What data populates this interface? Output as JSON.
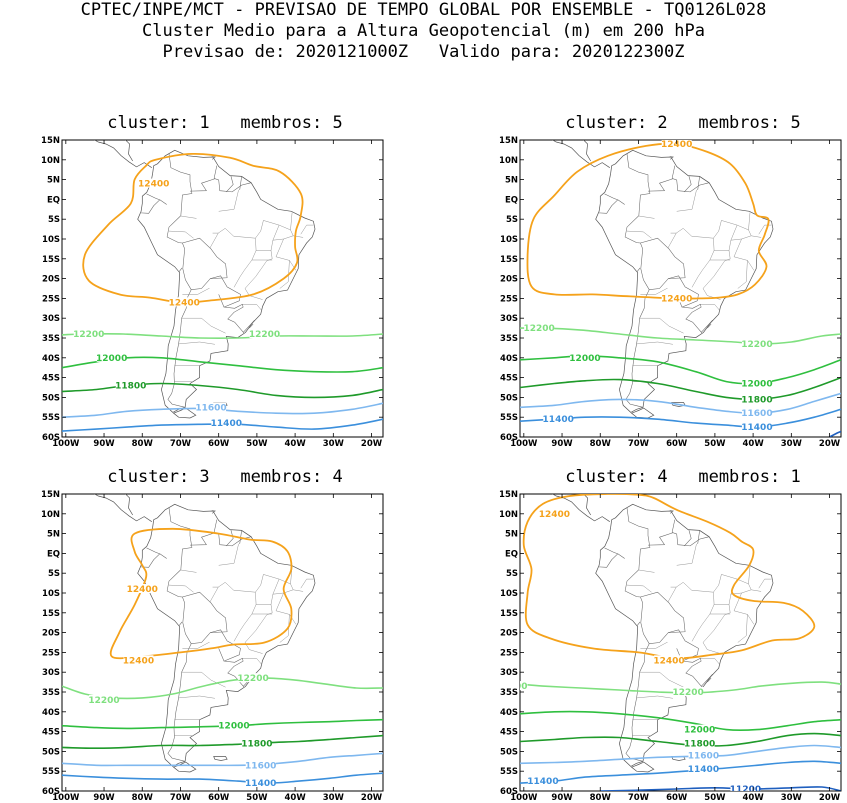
{
  "title": {
    "line1": "CPTEC/INPE/MCT - PREVISAO DE TEMPO GLOBAL POR ENSEMBLE - TQ0126L028",
    "line2": "Cluster Medio para a Altura Geopotencial (m) em 200 hPa",
    "line3": "Previsao de: 2020121000Z   Valido para: 2020122300Z"
  },
  "axes": {
    "lat_labels": [
      "15N",
      "10N",
      "5N",
      "EQ",
      "5S",
      "10S",
      "15S",
      "20S",
      "25S",
      "30S",
      "35S",
      "40S",
      "45S",
      "50S",
      "55S",
      "60S"
    ],
    "lon_labels": [
      "100W",
      "90W",
      "80W",
      "70W",
      "60W",
      "50W",
      "40W",
      "30W",
      "20W"
    ]
  },
  "level_colors": {
    "12400": "#f5a21b",
    "12200": "#7fe07f",
    "12000": "#2fbf3f",
    "11800": "#1f9a2a",
    "11600": "#7fb8ef",
    "11400": "#3b8fdc",
    "11200": "#1f5fbf"
  },
  "panels": [
    {
      "heading": "cluster: 1   membros: 5",
      "labels": [
        {
          "text": "12400",
          "lon": -77,
          "lat": 4,
          "color": "12400"
        },
        {
          "text": "12400",
          "lon": -69,
          "lat": -26,
          "color": "12400"
        },
        {
          "text": "12200",
          "lon": -94,
          "lat": -34,
          "color": "12200"
        },
        {
          "text": "12200",
          "lon": -48,
          "lat": -34,
          "color": "12200"
        },
        {
          "text": "12000",
          "lon": -88,
          "lat": -40,
          "color": "12000"
        },
        {
          "text": "11800",
          "lon": -83,
          "lat": -47,
          "color": "11800"
        },
        {
          "text": "11600",
          "lon": -62,
          "lat": -52.5,
          "color": "11600"
        },
        {
          "text": "11400",
          "lon": -58,
          "lat": -56.5,
          "color": "11400"
        }
      ]
    },
    {
      "heading": "cluster: 2   membros: 5",
      "labels": [
        {
          "text": "12400",
          "lon": -60,
          "lat": 14,
          "color": "12400"
        },
        {
          "text": "12400",
          "lon": -60,
          "lat": -25,
          "color": "12400"
        },
        {
          "text": "12200",
          "lon": -96,
          "lat": -32.5,
          "color": "12200"
        },
        {
          "text": "12200",
          "lon": -39,
          "lat": -36.5,
          "color": "12200"
        },
        {
          "text": "12000",
          "lon": -84,
          "lat": -40,
          "color": "12000"
        },
        {
          "text": "12000",
          "lon": -39,
          "lat": -46.5,
          "color": "12000"
        },
        {
          "text": "11800",
          "lon": -39,
          "lat": -50.5,
          "color": "11800"
        },
        {
          "text": "11600",
          "lon": -39,
          "lat": -54,
          "color": "11600"
        },
        {
          "text": "11400",
          "lon": -91,
          "lat": -55.5,
          "color": "11400"
        },
        {
          "text": "11400",
          "lon": -39,
          "lat": -57.5,
          "color": "11400"
        }
      ]
    },
    {
      "heading": "cluster: 3   membros: 4",
      "labels": [
        {
          "text": "12400",
          "lon": -80,
          "lat": -9,
          "color": "12400"
        },
        {
          "text": "12400",
          "lon": -81,
          "lat": -27,
          "color": "12400"
        },
        {
          "text": "12200",
          "lon": -51,
          "lat": -31.5,
          "color": "12200"
        },
        {
          "text": "12200",
          "lon": -90,
          "lat": -37,
          "color": "12200"
        },
        {
          "text": "12000",
          "lon": -56,
          "lat": -43.5,
          "color": "12000"
        },
        {
          "text": "11800",
          "lon": -50,
          "lat": -48,
          "color": "11800"
        },
        {
          "text": "11600",
          "lon": -49,
          "lat": -53.5,
          "color": "11600"
        },
        {
          "text": "11400",
          "lon": -49,
          "lat": -58,
          "color": "11400"
        }
      ]
    },
    {
      "heading": "cluster: 4   membros: 1",
      "labels": [
        {
          "text": "12400",
          "lon": -92,
          "lat": 10,
          "color": "12400"
        },
        {
          "text": "12400",
          "lon": -62,
          "lat": -27,
          "color": "12400"
        },
        {
          "text": "200",
          "lon": -101.5,
          "lat": -33.5,
          "color": "12200"
        },
        {
          "text": "12200",
          "lon": -57,
          "lat": -35,
          "color": "12200"
        },
        {
          "text": "12000",
          "lon": -54,
          "lat": -44.5,
          "color": "12000"
        },
        {
          "text": "11800",
          "lon": -54,
          "lat": -48,
          "color": "11800"
        },
        {
          "text": "11600",
          "lon": -53,
          "lat": -51,
          "color": "11600"
        },
        {
          "text": "11400",
          "lon": -53,
          "lat": -54.5,
          "color": "11400"
        },
        {
          "text": "11400",
          "lon": -95,
          "lat": -57.5,
          "color": "11400"
        },
        {
          "text": "11200",
          "lon": -42,
          "lat": -59.5,
          "color": "11200"
        }
      ]
    }
  ]
}
